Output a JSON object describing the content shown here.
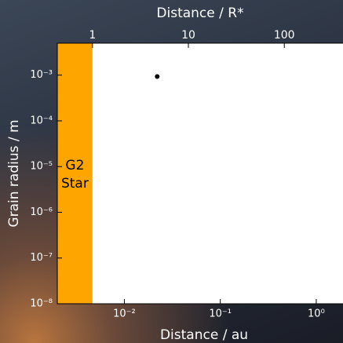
{
  "chart_data": {
    "type": "scatter",
    "xlabel": "Distance / au",
    "x2label": "Distance / R*",
    "ylabel": "Grain radius / m",
    "xscale": "log",
    "yscale": "log",
    "xlim": [
      0.002,
      1.9
    ],
    "x2lim": [
      0.43,
      409
    ],
    "ylim": [
      1e-08,
      0.005
    ],
    "xticks": [
      {
        "value": 0.01,
        "label": "10⁻²"
      },
      {
        "value": 0.1,
        "label": "10⁻¹"
      },
      {
        "value": 1,
        "label": "10⁰"
      }
    ],
    "x2ticks": [
      1,
      10,
      100
    ],
    "yticks": [
      {
        "value": 1e-08,
        "label": "10⁻⁸"
      },
      {
        "value": 1e-07,
        "label": "10⁻⁷"
      },
      {
        "value": 1e-06,
        "label": "10⁻⁶"
      },
      {
        "value": 1e-05,
        "label": "10⁻⁵"
      },
      {
        "value": 0.0001,
        "label": "10⁻⁴"
      },
      {
        "value": 0.001,
        "label": "10⁻³"
      }
    ],
    "star_span": {
      "to_x2": 1,
      "color": "#ffa500"
    },
    "annotations": [
      "G2",
      "Star"
    ],
    "series": [
      {
        "color": "#000000",
        "x": [
          0.022
        ],
        "values": [
          0.00093
        ]
      }
    ]
  }
}
